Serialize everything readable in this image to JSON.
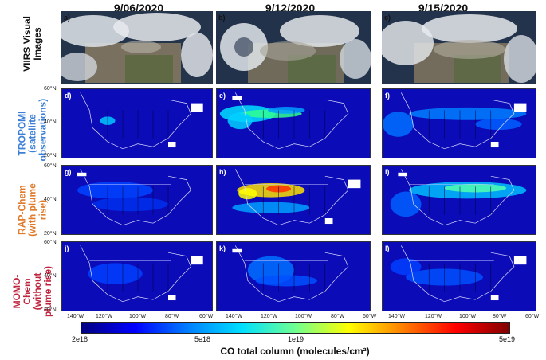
{
  "dates": [
    "9/06/2020",
    "9/12/2020",
    "9/15/2020"
  ],
  "row_labels": [
    {
      "text": "VIIRS Visual Images",
      "color": "#111111"
    },
    {
      "text": "TROPOMI (satellite observations)",
      "color": "#3d7fd6"
    },
    {
      "text": "RAP-Chem (with plume rise)",
      "color": "#e07b2c"
    },
    {
      "text": "MOMO-Chem (without plume rise)",
      "color": "#c0233e"
    }
  ],
  "panel_labels": [
    "a)",
    "b)",
    "c)",
    "d)",
    "e)",
    "f)",
    "g)",
    "h)",
    "i)",
    "j)",
    "k)",
    "l)"
  ],
  "lat_ticks": [
    "60°N",
    "40°N",
    "20°N"
  ],
  "lon_ticks_first": [
    "140°W",
    "120°W",
    "100°W",
    "80°W",
    "60°W"
  ],
  "lon_ticks_mid": [
    "140°W",
    "120°W",
    "100°W",
    "80°W",
    "60°W"
  ],
  "lon_ticks_last": [
    "140°W",
    "120°W",
    "100°W",
    "80°W",
    "60°W"
  ],
  "colorbar": {
    "ticks": [
      "2e18",
      "5e18",
      "1e19",
      "5e19"
    ],
    "title": "CO total column (molecules/cm²)",
    "scale": "log",
    "colors": [
      "#00007f",
      "#0000ff",
      "#0080ff",
      "#00e0ff",
      "#70ff90",
      "#ffff00",
      "#ff8000",
      "#ff0000",
      "#800000"
    ]
  }
}
